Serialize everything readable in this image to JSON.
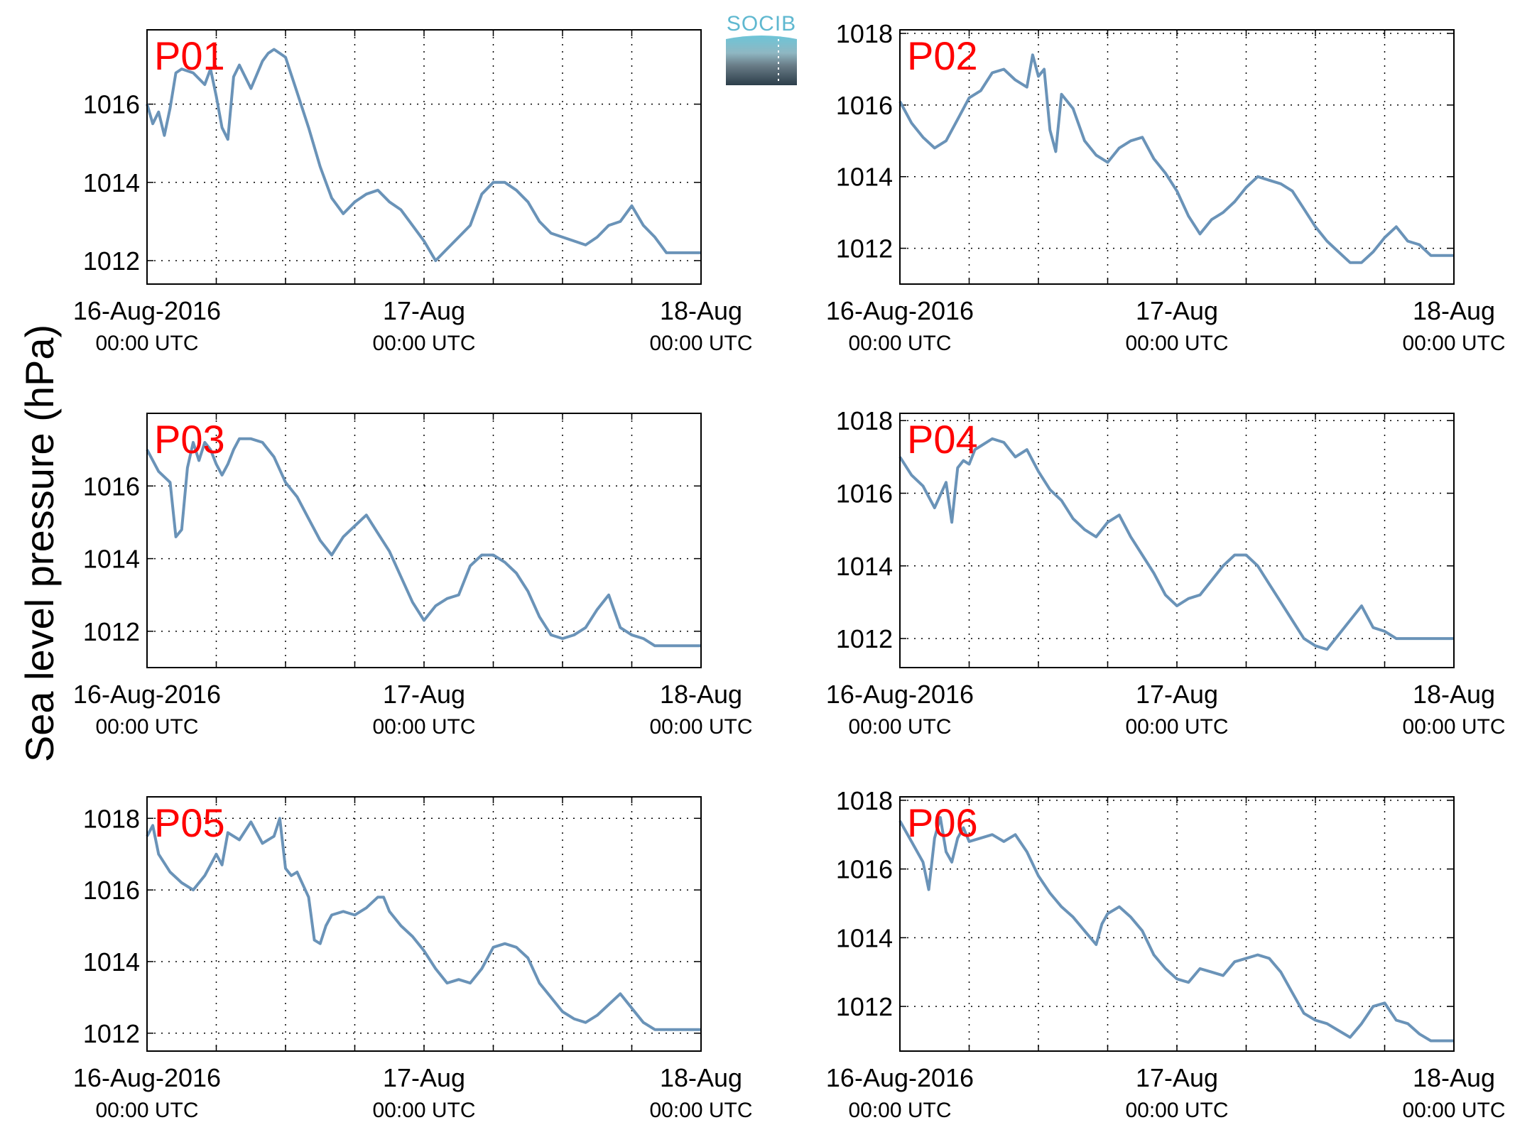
{
  "figure": {
    "ylabel": "Sea level pressure (hPa)",
    "logo_text": "SOCIB",
    "line_color": "#6a93b8",
    "title_color": "#ff0000"
  },
  "chart_data": [
    {
      "type": "line",
      "title": "P01",
      "xlim": [
        0,
        48
      ],
      "ylim": [
        1011.4,
        1017.9
      ],
      "yticks": [
        1012,
        1014,
        1016
      ],
      "xticks": [
        {
          "x": 0,
          "label": "16-Aug-2016",
          "sub": "00:00 UTC"
        },
        {
          "x": 24,
          "label": "17-Aug",
          "sub": "00:00 UTC"
        },
        {
          "x": 48,
          "label": "18-Aug",
          "sub": "00:00 UTC"
        }
      ],
      "series": [
        {
          "x": [
            0,
            0.5,
            1,
            1.5,
            2,
            2.5,
            3,
            4,
            5,
            5.5,
            6,
            6.5,
            7,
            7.5,
            8,
            9,
            10,
            10.5,
            11,
            11.5,
            12,
            13,
            14,
            15,
            16,
            17,
            18,
            19,
            20,
            21,
            22,
            23,
            24,
            25,
            26,
            27,
            28,
            29,
            30,
            31,
            32,
            33,
            34,
            35,
            36,
            37,
            38,
            39,
            40,
            41,
            42,
            43,
            44,
            45,
            46,
            47,
            48
          ],
          "y": [
            1016.0,
            1015.5,
            1015.8,
            1015.2,
            1015.9,
            1016.8,
            1016.9,
            1016.8,
            1016.5,
            1016.9,
            1016.2,
            1015.4,
            1015.1,
            1016.7,
            1017.0,
            1016.4,
            1017.1,
            1017.3,
            1017.4,
            1017.3,
            1017.2,
            1016.3,
            1015.4,
            1014.4,
            1013.6,
            1013.2,
            1013.5,
            1013.7,
            1013.8,
            1013.5,
            1013.3,
            1012.9,
            1012.5,
            1012.0,
            1012.3,
            1012.6,
            1012.9,
            1013.7,
            1014.0,
            1014.0,
            1013.8,
            1013.5,
            1013.0,
            1012.7,
            1012.6,
            1012.5,
            1012.4,
            1012.6,
            1012.9,
            1013.0,
            1013.4,
            1012.9,
            1012.6,
            1012.2,
            1012.2,
            1012.2,
            1012.2
          ]
        }
      ]
    },
    {
      "type": "line",
      "title": "P02",
      "xlim": [
        0,
        48
      ],
      "ylim": [
        1011.0,
        1018.1
      ],
      "yticks": [
        1012,
        1014,
        1016,
        1018
      ],
      "xticks": [
        {
          "x": 0,
          "label": "16-Aug-2016",
          "sub": "00:00 UTC"
        },
        {
          "x": 24,
          "label": "17-Aug",
          "sub": "00:00 UTC"
        },
        {
          "x": 48,
          "label": "18-Aug",
          "sub": "00:00 UTC"
        }
      ],
      "series": [
        {
          "x": [
            0,
            1,
            2,
            3,
            4,
            5,
            6,
            7,
            8,
            9,
            10,
            11,
            11.5,
            12,
            12.5,
            13,
            13.5,
            14,
            15,
            16,
            17,
            18,
            19,
            20,
            21,
            22,
            23,
            24,
            25,
            26,
            27,
            28,
            29,
            30,
            31,
            32,
            33,
            34,
            35,
            36,
            37,
            38,
            39,
            40,
            41,
            42,
            43,
            44,
            45,
            46,
            47,
            48
          ],
          "y": [
            1016.1,
            1015.5,
            1015.1,
            1014.8,
            1015.0,
            1015.6,
            1016.2,
            1016.4,
            1016.9,
            1017.0,
            1016.7,
            1016.5,
            1017.4,
            1016.8,
            1017.0,
            1015.3,
            1014.7,
            1016.3,
            1015.9,
            1015.0,
            1014.6,
            1014.4,
            1014.8,
            1015.0,
            1015.1,
            1014.5,
            1014.1,
            1013.6,
            1012.9,
            1012.4,
            1012.8,
            1013.0,
            1013.3,
            1013.7,
            1014.0,
            1013.9,
            1013.8,
            1013.6,
            1013.1,
            1012.6,
            1012.2,
            1011.9,
            1011.6,
            1011.6,
            1011.9,
            1012.3,
            1012.6,
            1012.2,
            1012.1,
            1011.8,
            1011.8,
            1011.8
          ]
        }
      ]
    },
    {
      "type": "line",
      "title": "P03",
      "xlim": [
        0,
        48
      ],
      "ylim": [
        1011.0,
        1018.0
      ],
      "yticks": [
        1012,
        1014,
        1016
      ],
      "xticks": [
        {
          "x": 0,
          "label": "16-Aug-2016",
          "sub": "00:00 UTC"
        },
        {
          "x": 24,
          "label": "17-Aug",
          "sub": "00:00 UTC"
        },
        {
          "x": 48,
          "label": "18-Aug",
          "sub": "00:00 UTC"
        }
      ],
      "series": [
        {
          "x": [
            0,
            1,
            2,
            2.5,
            3,
            3.5,
            4,
            4.5,
            5,
            5.5,
            6,
            6.5,
            7,
            7.5,
            8,
            9,
            10,
            11,
            12,
            13,
            14,
            15,
            16,
            17,
            18,
            19,
            20,
            21,
            22,
            23,
            24,
            25,
            26,
            27,
            28,
            29,
            30,
            31,
            32,
            33,
            34,
            35,
            36,
            37,
            38,
            39,
            40,
            41,
            42,
            43,
            44,
            45,
            46,
            47,
            48
          ],
          "y": [
            1017.0,
            1016.4,
            1016.1,
            1014.6,
            1014.8,
            1016.5,
            1017.2,
            1016.7,
            1017.2,
            1017.0,
            1016.6,
            1016.3,
            1016.6,
            1017.0,
            1017.3,
            1017.3,
            1017.2,
            1016.8,
            1016.1,
            1015.7,
            1015.1,
            1014.5,
            1014.1,
            1014.6,
            1014.9,
            1015.2,
            1014.7,
            1014.2,
            1013.5,
            1012.8,
            1012.3,
            1012.7,
            1012.9,
            1013.0,
            1013.8,
            1014.1,
            1014.1,
            1013.9,
            1013.6,
            1013.1,
            1012.4,
            1011.9,
            1011.8,
            1011.9,
            1012.1,
            1012.6,
            1013.0,
            1012.1,
            1011.9,
            1011.8,
            1011.6,
            1011.6,
            1011.6,
            1011.6,
            1011.6
          ]
        }
      ]
    },
    {
      "type": "line",
      "title": "P04",
      "xlim": [
        0,
        48
      ],
      "ylim": [
        1011.2,
        1018.2
      ],
      "yticks": [
        1012,
        1014,
        1016,
        1018
      ],
      "xticks": [
        {
          "x": 0,
          "label": "16-Aug-2016",
          "sub": "00:00 UTC"
        },
        {
          "x": 24,
          "label": "17-Aug",
          "sub": "00:00 UTC"
        },
        {
          "x": 48,
          "label": "18-Aug",
          "sub": "00:00 UTC"
        }
      ],
      "series": [
        {
          "x": [
            0,
            1,
            2,
            3,
            4,
            4.5,
            5,
            5.5,
            6,
            6.5,
            7,
            8,
            9,
            10,
            11,
            12,
            13,
            14,
            15,
            16,
            17,
            18,
            19,
            20,
            21,
            22,
            23,
            24,
            25,
            26,
            27,
            28,
            29,
            30,
            31,
            32,
            33,
            34,
            35,
            36,
            37,
            38,
            39,
            40,
            41,
            42,
            43,
            44,
            45,
            46,
            47,
            48
          ],
          "y": [
            1017.0,
            1016.5,
            1016.2,
            1015.6,
            1016.3,
            1015.2,
            1016.7,
            1016.9,
            1016.8,
            1017.2,
            1017.3,
            1017.5,
            1017.4,
            1017.0,
            1017.2,
            1016.6,
            1016.1,
            1015.8,
            1015.3,
            1015.0,
            1014.8,
            1015.2,
            1015.4,
            1014.8,
            1014.3,
            1013.8,
            1013.2,
            1012.9,
            1013.1,
            1013.2,
            1013.6,
            1014.0,
            1014.3,
            1014.3,
            1014.0,
            1013.5,
            1013.0,
            1012.5,
            1012.0,
            1011.8,
            1011.7,
            1012.1,
            1012.5,
            1012.9,
            1012.3,
            1012.2,
            1012.0,
            1012.0,
            1012.0,
            1012.0,
            1012.0,
            1012.0
          ]
        }
      ]
    },
    {
      "type": "line",
      "title": "P05",
      "xlim": [
        0,
        48
      ],
      "ylim": [
        1011.5,
        1018.6
      ],
      "yticks": [
        1012,
        1014,
        1016,
        1018
      ],
      "xticks": [
        {
          "x": 0,
          "label": "16-Aug-2016",
          "sub": "00:00 UTC"
        },
        {
          "x": 24,
          "label": "17-Aug",
          "sub": "00:00 UTC"
        },
        {
          "x": 48,
          "label": "18-Aug",
          "sub": "00:00 UTC"
        }
      ],
      "series": [
        {
          "x": [
            0,
            0.5,
            1,
            2,
            3,
            4,
            5,
            6,
            6.5,
            7,
            8,
            9,
            10,
            11,
            11.5,
            12,
            12.5,
            13,
            14,
            14.5,
            15,
            15.5,
            16,
            17,
            18,
            19,
            20,
            20.5,
            21,
            22,
            23,
            24,
            25,
            26,
            27,
            28,
            29,
            30,
            31,
            32,
            33,
            34,
            35,
            36,
            37,
            38,
            39,
            40,
            41,
            42,
            43,
            44,
            45,
            46,
            47,
            48
          ],
          "y": [
            1017.5,
            1017.8,
            1017.0,
            1016.5,
            1016.2,
            1016.0,
            1016.4,
            1017.0,
            1016.7,
            1017.6,
            1017.4,
            1017.9,
            1017.3,
            1017.5,
            1018.0,
            1016.6,
            1016.4,
            1016.5,
            1015.8,
            1014.6,
            1014.5,
            1015.0,
            1015.3,
            1015.4,
            1015.3,
            1015.5,
            1015.8,
            1015.8,
            1015.4,
            1015.0,
            1014.7,
            1014.3,
            1013.8,
            1013.4,
            1013.5,
            1013.4,
            1013.8,
            1014.4,
            1014.5,
            1014.4,
            1014.1,
            1013.4,
            1013.0,
            1012.6,
            1012.4,
            1012.3,
            1012.5,
            1012.8,
            1013.1,
            1012.7,
            1012.3,
            1012.1,
            1012.1,
            1012.1,
            1012.1,
            1012.1
          ]
        }
      ]
    },
    {
      "type": "line",
      "title": "P06",
      "xlim": [
        0,
        48
      ],
      "ylim": [
        1010.7,
        1018.1
      ],
      "yticks": [
        1012,
        1014,
        1016,
        1018
      ],
      "xticks": [
        {
          "x": 0,
          "label": "16-Aug-2016",
          "sub": "00:00 UTC"
        },
        {
          "x": 24,
          "label": "17-Aug",
          "sub": "00:00 UTC"
        },
        {
          "x": 48,
          "label": "18-Aug",
          "sub": "00:00 UTC"
        }
      ],
      "series": [
        {
          "x": [
            0,
            1,
            2,
            2.5,
            3,
            3.5,
            4,
            4.5,
            5,
            5.5,
            6,
            7,
            8,
            9,
            10,
            11,
            12,
            13,
            14,
            15,
            16,
            17,
            17.5,
            18,
            19,
            20,
            21,
            22,
            23,
            24,
            25,
            26,
            27,
            28,
            29,
            30,
            31,
            32,
            33,
            34,
            35,
            36,
            37,
            38,
            39,
            40,
            41,
            42,
            43,
            44,
            45,
            46,
            47,
            48
          ],
          "y": [
            1017.4,
            1016.8,
            1016.2,
            1015.4,
            1016.9,
            1017.5,
            1016.5,
            1016.2,
            1016.9,
            1017.2,
            1016.8,
            1016.9,
            1017.0,
            1016.8,
            1017.0,
            1016.5,
            1015.8,
            1015.3,
            1014.9,
            1014.6,
            1014.2,
            1013.8,
            1014.4,
            1014.7,
            1014.9,
            1014.6,
            1014.2,
            1013.5,
            1013.1,
            1012.8,
            1012.7,
            1013.1,
            1013.0,
            1012.9,
            1013.3,
            1013.4,
            1013.5,
            1013.4,
            1013.0,
            1012.4,
            1011.8,
            1011.6,
            1011.5,
            1011.3,
            1011.1,
            1011.5,
            1012.0,
            1012.1,
            1011.6,
            1011.5,
            1011.2,
            1011.0,
            1011.0,
            1011.0
          ]
        }
      ]
    }
  ]
}
